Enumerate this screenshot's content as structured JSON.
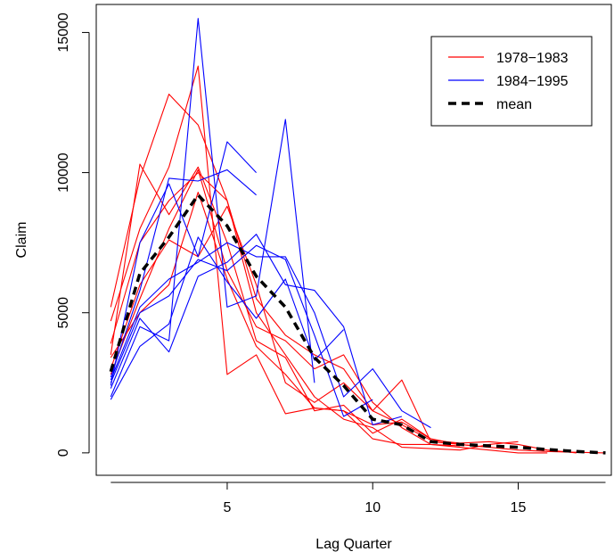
{
  "chart_data": {
    "type": "line",
    "title": "",
    "xlabel": "Lag Quarter",
    "ylabel": "Claim",
    "xlim": [
      0.5,
      18.2
    ],
    "ylim": [
      -800,
      16000
    ],
    "xticks": [
      5,
      10,
      15
    ],
    "yticks": [
      0,
      5000,
      10000,
      15000
    ],
    "grid": false,
    "legend": {
      "position": "top-right",
      "entries": [
        {
          "label": "1978−1983",
          "color": "#ff0000",
          "style": "solid"
        },
        {
          "label": "1984−1995",
          "color": "#0000ff",
          "style": "solid"
        },
        {
          "label": "mean",
          "color": "#000000",
          "style": "dashed"
        }
      ]
    },
    "series": [
      {
        "group": "1978−1983",
        "color": "#ff0000",
        "x": [
          1,
          2,
          3,
          4,
          5,
          6,
          7,
          8,
          9,
          10,
          11,
          12,
          13,
          14,
          15,
          16,
          17,
          18
        ],
        "y": [
          3500,
          10300,
          8500,
          10200,
          7500,
          4000,
          3400,
          1500,
          1700,
          700,
          1200,
          500,
          300,
          200,
          100,
          50,
          20,
          0
        ]
      },
      {
        "group": "1978−1983",
        "color": "#ff0000",
        "x": [
          1,
          2,
          3,
          4,
          5,
          6,
          7,
          8,
          9,
          10,
          11,
          12,
          13,
          14,
          15,
          16,
          17
        ],
        "y": [
          5200,
          9800,
          12800,
          11700,
          9000,
          5500,
          4200,
          3500,
          3000,
          1500,
          1000,
          450,
          350,
          400,
          300,
          100,
          0
        ]
      },
      {
        "group": "1978−1983",
        "color": "#ff0000",
        "x": [
          1,
          2,
          3,
          4,
          5,
          6,
          7,
          8,
          9,
          10,
          11,
          12,
          13,
          14,
          15,
          16
        ],
        "y": [
          4700,
          8000,
          10200,
          13800,
          2800,
          3500,
          1400,
          1600,
          1500,
          500,
          300,
          300,
          200,
          100,
          0,
          0
        ]
      },
      {
        "group": "1978−1983",
        "color": "#ff0000",
        "x": [
          1,
          2,
          3,
          4,
          5,
          6,
          7,
          8,
          9,
          10,
          11,
          12,
          13,
          14,
          15
        ],
        "y": [
          3900,
          7500,
          9000,
          10000,
          9000,
          5000,
          3500,
          2000,
          1200,
          900,
          200,
          150,
          100,
          300,
          400
        ]
      },
      {
        "group": "1978−1983",
        "color": "#ff0000",
        "x": [
          1,
          2,
          3,
          4,
          5,
          6,
          7,
          8,
          9,
          10,
          11,
          12,
          13,
          14
        ],
        "y": [
          3000,
          6000,
          7600,
          7000,
          8800,
          6000,
          2500,
          1800,
          2500,
          1500,
          2600,
          400,
          300,
          200
        ]
      },
      {
        "group": "1978−1983",
        "color": "#ff0000",
        "x": [
          1,
          2,
          3,
          4,
          5,
          6,
          7,
          8,
          9,
          10,
          11,
          12,
          13
        ],
        "y": [
          2800,
          5500,
          8000,
          10100,
          6500,
          4500,
          4000,
          3000,
          3500,
          1800,
          900,
          300,
          250
        ]
      },
      {
        "group": "1978−1983",
        "color": "#ff0000",
        "x": [
          1,
          2,
          3,
          4,
          5,
          6,
          7,
          8,
          9,
          10,
          11,
          12
        ],
        "y": [
          3400,
          5000,
          6000,
          9300,
          6200,
          3800,
          2800,
          1600,
          1500,
          1000,
          1100,
          500
        ]
      },
      {
        "group": "1984−1995",
        "color": "#0000ff",
        "x": [
          1,
          2,
          3,
          4,
          5,
          6
        ],
        "y": [
          2700,
          5800,
          9800,
          9700,
          10100,
          9200
        ]
      },
      {
        "group": "1984−1995",
        "color": "#0000ff",
        "x": [
          1,
          2,
          3,
          4,
          5,
          6
        ],
        "y": [
          2400,
          7500,
          9600,
          7000,
          11100,
          10000
        ]
      },
      {
        "group": "1984−1995",
        "color": "#0000ff",
        "x": [
          1,
          2,
          3,
          4,
          5,
          6,
          7,
          8
        ],
        "y": [
          2000,
          4500,
          4000,
          15500,
          5200,
          5600,
          11900,
          2500
        ]
      },
      {
        "group": "1984−1995",
        "color": "#0000ff",
        "x": [
          1,
          2,
          3,
          4,
          5,
          6,
          7,
          8,
          9,
          10,
          11,
          12
        ],
        "y": [
          2600,
          5200,
          6200,
          6800,
          7500,
          7000,
          7000,
          5000,
          2000,
          3000,
          1500,
          900
        ]
      },
      {
        "group": "1984−1995",
        "color": "#0000ff",
        "x": [
          1,
          2,
          3,
          4,
          5,
          6,
          7,
          8,
          9,
          10,
          11
        ],
        "y": [
          2300,
          4800,
          3600,
          6300,
          6800,
          7800,
          6000,
          5800,
          4500,
          1000,
          1300
        ]
      },
      {
        "group": "1984−1995",
        "color": "#0000ff",
        "x": [
          1,
          2,
          3,
          4,
          5,
          6,
          7,
          8,
          9,
          10
        ],
        "y": [
          2500,
          5000,
          5600,
          6900,
          6500,
          7400,
          6900,
          4200,
          1300,
          1900
        ]
      },
      {
        "group": "1984−1995",
        "color": "#0000ff",
        "x": [
          1,
          2,
          3,
          4,
          5,
          6,
          7,
          8,
          9
        ],
        "y": [
          1900,
          3800,
          4600,
          7700,
          6100,
          4800,
          6200,
          3300,
          4400
        ]
      },
      {
        "group": "mean",
        "color": "#000000",
        "dashed": true,
        "x": [
          1,
          2,
          3,
          4,
          5,
          6,
          7,
          8,
          9,
          10,
          11,
          12,
          13,
          14,
          15,
          16,
          17,
          18
        ],
        "y": [
          2900,
          6400,
          7700,
          9200,
          8100,
          6300,
          5200,
          3400,
          2400,
          1200,
          1000,
          400,
          300,
          250,
          200,
          120,
          50,
          0
        ]
      }
    ]
  }
}
